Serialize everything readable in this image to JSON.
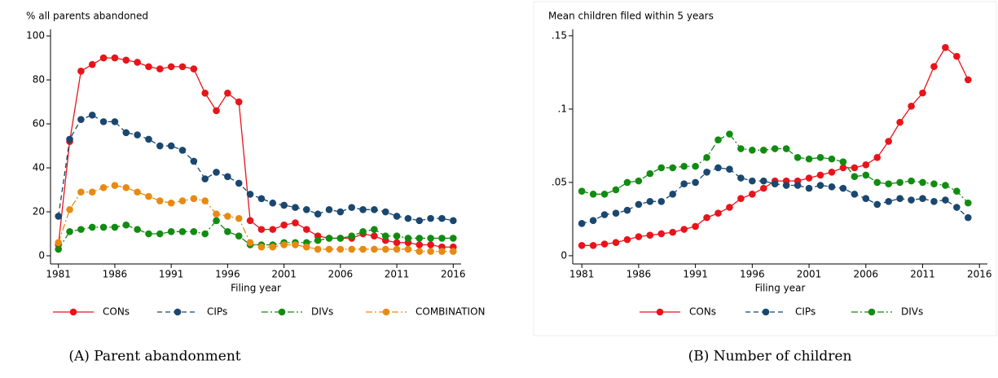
{
  "chart_data": [
    {
      "type": "line",
      "y_title": "% all parents abandoned",
      "x_title": "Filing year",
      "caption": "(A) Parent abandonment",
      "x": [
        1981,
        1982,
        1983,
        1984,
        1985,
        1986,
        1987,
        1988,
        1989,
        1990,
        1991,
        1992,
        1993,
        1994,
        1995,
        1996,
        1997,
        1998,
        1999,
        2000,
        2001,
        2002,
        2003,
        2004,
        2005,
        2006,
        2007,
        2008,
        2009,
        2010,
        2011,
        2012,
        2013,
        2014,
        2015,
        2016
      ],
      "xlim": [
        1980.3,
        2016.7
      ],
      "xticks": [
        1981,
        1986,
        1991,
        1996,
        2001,
        2006,
        2011,
        2016
      ],
      "ylim": [
        -3.7,
        103
      ],
      "yticks": [
        0,
        20,
        40,
        60,
        80,
        100
      ],
      "series": [
        {
          "name": "CONs",
          "color": "#e8141a",
          "dash": "solid",
          "values": [
            5,
            52,
            84,
            87,
            90,
            90,
            89,
            88,
            86,
            85,
            86,
            86,
            85,
            74,
            66,
            74,
            70,
            16,
            12,
            12,
            14,
            15,
            12,
            9,
            8,
            8,
            8,
            10,
            9,
            7,
            6,
            6,
            5,
            5,
            4,
            4
          ]
        },
        {
          "name": "CIPs",
          "color": "#1a476f",
          "dash": "dash",
          "values": [
            18,
            53,
            62,
            64,
            61,
            61,
            56,
            55,
            53,
            50,
            50,
            48,
            43,
            35,
            38,
            36,
            33,
            28,
            26,
            24,
            23,
            22,
            21,
            19,
            21,
            20,
            22,
            21,
            21,
            20,
            18,
            17,
            16,
            17,
            17,
            16
          ]
        },
        {
          "name": "DIVs",
          "color": "#118c11",
          "dash": "dashdot",
          "values": [
            3,
            11,
            12,
            13,
            13,
            13,
            14,
            12,
            10,
            10,
            11,
            11,
            11,
            10,
            16,
            11,
            9,
            5,
            5,
            5,
            6,
            6,
            6,
            7,
            8,
            8,
            9,
            11,
            12,
            9,
            9,
            8,
            8,
            8,
            8,
            8
          ]
        },
        {
          "name": "COMBINATION",
          "color": "#e88a12",
          "dash": "dashdot",
          "values": [
            6,
            21,
            29,
            29,
            31,
            32,
            31,
            29,
            27,
            25,
            24,
            25,
            26,
            25,
            19,
            18,
            17,
            6,
            4,
            4,
            5,
            5,
            4,
            3,
            3,
            3,
            3,
            3,
            3,
            3,
            3,
            3,
            2,
            2,
            2,
            2
          ]
        }
      ]
    },
    {
      "type": "line",
      "y_title": "Mean children filed within 5 years",
      "x_title": "Filing year",
      "caption": "(B) Number of children",
      "x": [
        1981,
        1982,
        1983,
        1984,
        1985,
        1986,
        1987,
        1988,
        1989,
        1990,
        1991,
        1992,
        1993,
        1994,
        1995,
        1996,
        1997,
        1998,
        1999,
        2000,
        2001,
        2002,
        2003,
        2004,
        2005,
        2006,
        2007,
        2008,
        2009,
        2010,
        2011,
        2012,
        2013,
        2014,
        2015
      ],
      "xlim": [
        1980.2,
        2016.7
      ],
      "xticks": [
        1981,
        1986,
        1991,
        1996,
        2001,
        2006,
        2011,
        2016
      ],
      "ylim": [
        -0.0056,
        0.1544
      ],
      "yticks": [
        0,
        {
          "value": 0.05,
          "label": ".05"
        },
        {
          "value": 0.1,
          "label": ".1"
        },
        {
          "value": 0.15,
          "label": ".15"
        }
      ],
      "series": [
        {
          "name": "CONs",
          "color": "#e8141a",
          "dash": "solid",
          "values": [
            0.007,
            0.007,
            0.008,
            0.009,
            0.011,
            0.013,
            0.014,
            0.015,
            0.016,
            0.018,
            0.02,
            0.026,
            0.029,
            0.033,
            0.039,
            0.042,
            0.046,
            0.051,
            0.051,
            0.051,
            0.053,
            0.055,
            0.057,
            0.06,
            0.06,
            0.062,
            0.067,
            0.078,
            0.091,
            0.102,
            0.111,
            0.129,
            0.142,
            0.136,
            0.12
          ]
        },
        {
          "name": "CIPs",
          "color": "#1a476f",
          "dash": "dash",
          "values": [
            0.022,
            0.024,
            0.028,
            0.029,
            0.031,
            0.035,
            0.037,
            0.037,
            0.042,
            0.049,
            0.05,
            0.057,
            0.06,
            0.059,
            0.053,
            0.051,
            0.051,
            0.049,
            0.048,
            0.048,
            0.046,
            0.048,
            0.047,
            0.046,
            0.042,
            0.039,
            0.035,
            0.037,
            0.039,
            0.038,
            0.039,
            0.037,
            0.038,
            0.033,
            0.026
          ]
        },
        {
          "name": "DIVs",
          "color": "#118c11",
          "dash": "dashdot",
          "values": [
            0.044,
            0.042,
            0.042,
            0.045,
            0.05,
            0.051,
            0.056,
            0.06,
            0.06,
            0.061,
            0.061,
            0.067,
            0.079,
            0.083,
            0.073,
            0.072,
            0.072,
            0.073,
            0.073,
            0.067,
            0.066,
            0.067,
            0.066,
            0.064,
            0.054,
            0.055,
            0.05,
            0.049,
            0.05,
            0.051,
            0.05,
            0.049,
            0.048,
            0.044,
            0.036
          ]
        }
      ]
    }
  ]
}
